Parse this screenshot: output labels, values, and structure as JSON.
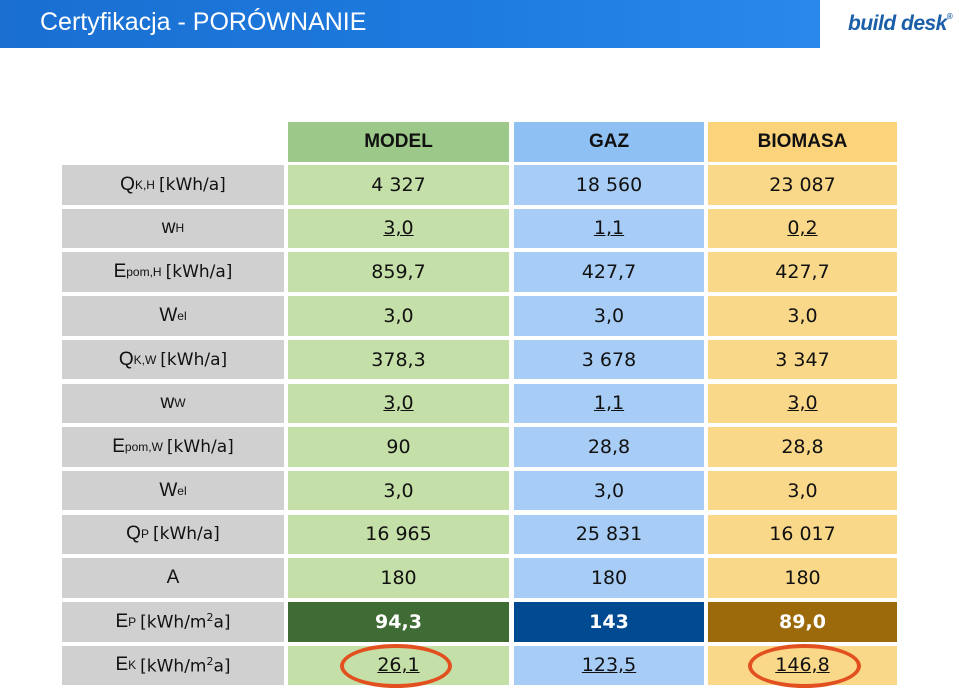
{
  "header": {
    "title": "Certyfikacja - PORÓWNANIE",
    "logo_text": "build desk",
    "logo_mark": "®"
  },
  "table": {
    "columns": [
      "MODEL",
      "GAZ",
      "BIOMASA"
    ],
    "rows": [
      {
        "sym": "Q",
        "sub": "K,H",
        "unit": "[kWh/a]",
        "sup": "",
        "unit_tail": "",
        "values": [
          "4 327",
          "18 560",
          "23 087"
        ]
      },
      {
        "sym": "w",
        "sub": "H",
        "unit": "",
        "sup": "",
        "unit_tail": "",
        "values": [
          "3,0",
          "1,1",
          "0,2"
        ]
      },
      {
        "sym": "E",
        "sub": "pom,H",
        "unit": "[kWh/a]",
        "sup": "",
        "unit_tail": "",
        "values": [
          "859,7",
          "427,7",
          "427,7"
        ]
      },
      {
        "sym": "W",
        "sub": "el",
        "unit": "",
        "sup": "",
        "unit_tail": "",
        "values": [
          "3,0",
          "3,0",
          "3,0"
        ]
      },
      {
        "sym": "Q",
        "sub": "K,W",
        "unit": "[kWh/a]",
        "sup": "",
        "unit_tail": "",
        "values": [
          "378,3",
          "3 678",
          "3 347"
        ]
      },
      {
        "sym": "w",
        "sub": "W",
        "unit": "",
        "sup": "",
        "unit_tail": "",
        "values": [
          "3,0",
          "1,1",
          "3,0"
        ]
      },
      {
        "sym": "E",
        "sub": "pom,W",
        "unit": "[kWh/a]",
        "sup": "",
        "unit_tail": "",
        "values": [
          "90",
          "28,8",
          "28,8"
        ]
      },
      {
        "sym": "W",
        "sub": "el",
        "unit": "",
        "sup": "",
        "unit_tail": "",
        "values": [
          "3,0",
          "3,0",
          "3,0"
        ]
      },
      {
        "sym": "Q",
        "sub": "P",
        "unit": "[kWh/a]",
        "sup": "",
        "unit_tail": "",
        "values": [
          "16 965",
          "25 831",
          "16 017"
        ]
      },
      {
        "sym": "A",
        "sub": "",
        "unit": "",
        "sup": "",
        "unit_tail": "",
        "values": [
          "180",
          "180",
          "180"
        ]
      },
      {
        "sym": "E",
        "sub": "P",
        "unit": "[kWh/m",
        "sup": "2",
        "unit_tail": "a]",
        "values": [
          "94,3",
          "143",
          "89,0"
        ]
      },
      {
        "sym": "E",
        "sub": "K",
        "unit": "[kWh/m",
        "sup": "2",
        "unit_tail": "a]",
        "values": [
          "26,1",
          "123,5",
          "146,8"
        ]
      }
    ]
  },
  "colors": {
    "title_bar": "#1e7be0",
    "model": "#c5dfa8",
    "gaz": "#a7ccf6",
    "biomasa": "#fad889",
    "model_dark": "#3f6b35",
    "gaz_dark": "#004a91",
    "biomasa_dark": "#9c6a0a",
    "highlight_circle": "#e35020"
  }
}
